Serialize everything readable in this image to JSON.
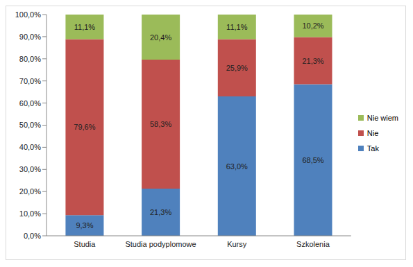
{
  "chart_data": {
    "type": "bar",
    "stacked": true,
    "data_labels": true,
    "grid": false,
    "legend": "right",
    "categories": [
      "Studia",
      "Studia podyplomowe",
      "Kursy",
      "Szkolenia"
    ],
    "series": [
      {
        "name": "Tak",
        "color": "#4f81bd",
        "values": [
          9.3,
          21.3,
          63.0,
          68.5
        ],
        "value_labels": [
          "9,3%",
          "21,3%",
          "63,0%",
          "68,5%"
        ]
      },
      {
        "name": "Nie",
        "color": "#c0504d",
        "values": [
          79.6,
          58.3,
          25.9,
          21.3
        ],
        "value_labels": [
          "79,6%",
          "58,3%",
          "25,9%",
          "21,3%"
        ]
      },
      {
        "name": "Nie wiem",
        "color": "#9bbb59",
        "values": [
          11.1,
          20.4,
          11.1,
          10.2
        ],
        "value_labels": [
          "11,1%",
          "20,4%",
          "11,1%",
          "10,2%"
        ]
      }
    ],
    "ylim": [
      0,
      100
    ],
    "yticks": [
      {
        "value": 0,
        "label": "0,0%"
      },
      {
        "value": 10,
        "label": "10,0%"
      },
      {
        "value": 20,
        "label": "20,0%"
      },
      {
        "value": 30,
        "label": "30,0%"
      },
      {
        "value": 40,
        "label": "40,0%"
      },
      {
        "value": 50,
        "label": "50,0%"
      },
      {
        "value": 60,
        "label": "60,0%"
      },
      {
        "value": 70,
        "label": "70,0%"
      },
      {
        "value": 80,
        "label": "80,0%"
      },
      {
        "value": 90,
        "label": "90,0%"
      },
      {
        "value": 100,
        "label": "100,0%"
      }
    ]
  }
}
